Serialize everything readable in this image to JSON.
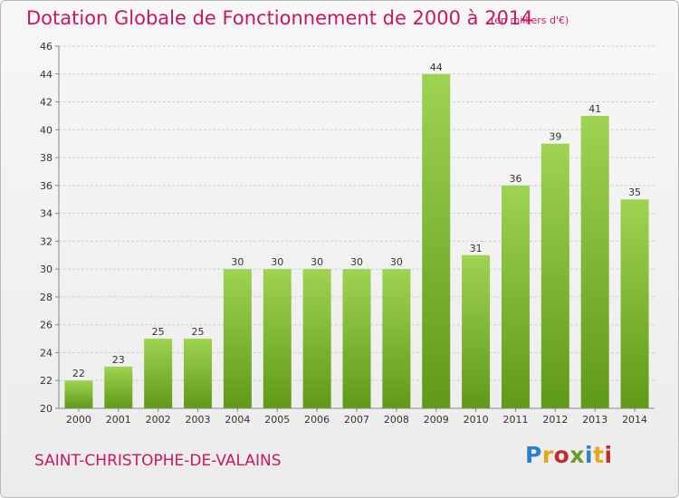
{
  "header": {
    "title": "Dotation Globale de Fonctionnement de 2000 à 2014",
    "unit": "(en milliers d'€)"
  },
  "footer": {
    "commune": "SAINT-CHRISTOPHE-DE-VALAINS",
    "logo_letters": [
      "P",
      "r",
      "o",
      "x",
      "i",
      "t",
      "i"
    ],
    "logo_colors": [
      "#2a7fd0",
      "#e8a514",
      "#c02e2e",
      "#6a9c28",
      "#2a7fd0",
      "#e8a514",
      "#c02e2e"
    ]
  },
  "colors": {
    "bar_light": "#9fd352",
    "bar_dark": "#5f9a16",
    "grid": "#d0d0d0",
    "axis": "#888888",
    "accent": "#c8185f"
  },
  "chart_data": {
    "type": "bar",
    "title": "Dotation Globale de Fonctionnement de 2000 à 2014",
    "xlabel": "",
    "ylabel": "",
    "categories": [
      "2000",
      "2001",
      "2002",
      "2003",
      "2004",
      "2005",
      "2006",
      "2007",
      "2008",
      "2009",
      "2010",
      "2011",
      "2012",
      "2013",
      "2014"
    ],
    "values": [
      22,
      23,
      25,
      25,
      30,
      30,
      30,
      30,
      30,
      44,
      31,
      36,
      39,
      41,
      35
    ],
    "ylim": [
      20,
      46
    ],
    "yticks": [
      20,
      22,
      24,
      26,
      28,
      30,
      32,
      34,
      36,
      38,
      40,
      42,
      44,
      46
    ],
    "grid": true,
    "legend": "none"
  }
}
